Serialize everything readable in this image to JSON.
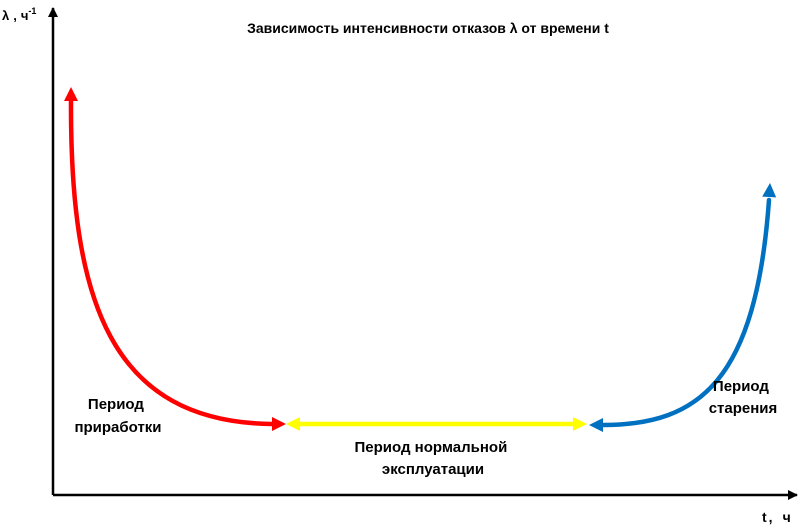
{
  "chart_data": {
    "type": "line",
    "title": "Зависимость интенсивности отказов λ от времени t",
    "ylabel": {
      "symbol": "λ",
      "separator": ",",
      "unit": "ч",
      "exponent": "-1"
    },
    "xlabel": {
      "symbol": "t",
      "separator": ",",
      "unit": "ч"
    },
    "grid": false,
    "legend": "none",
    "axis_color": "#000000",
    "phases": [
      {
        "label_lines": [
          "Период",
          "приработки"
        ],
        "color": "#ff0000",
        "shape": "decreasing"
      },
      {
        "label_lines": [
          "Период нормальной",
          "эксплуатации"
        ],
        "color": "#ffff00",
        "shape": "constant"
      },
      {
        "label_lines": [
          "Период",
          "старения"
        ],
        "color": "#0070c0",
        "shape": "increasing"
      }
    ]
  }
}
